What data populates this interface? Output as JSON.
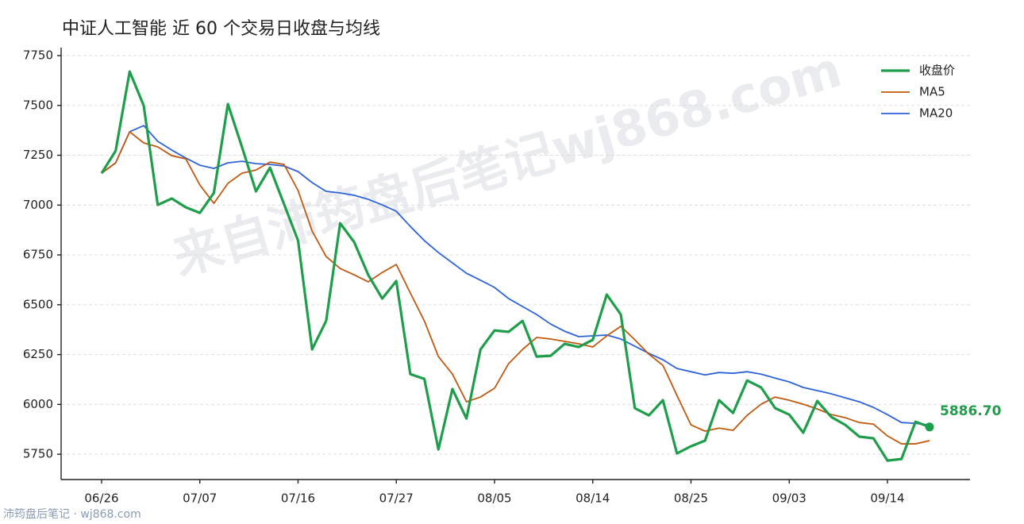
{
  "chart_data": {
    "type": "line",
    "title": "中证人工智能 近 60 个交易日收盘与均线",
    "watermark": "来自沛筠盘后笔记wj868.com",
    "footer": "沛筠盘后笔记 · wj868.com",
    "categories": [
      "06/26",
      null,
      null,
      null,
      null,
      null,
      null,
      "07/07",
      null,
      null,
      null,
      null,
      null,
      null,
      "07/16",
      null,
      null,
      null,
      null,
      null,
      null,
      "07/27",
      null,
      null,
      null,
      null,
      null,
      null,
      "08/05",
      null,
      null,
      null,
      null,
      null,
      null,
      "08/14",
      null,
      null,
      null,
      null,
      null,
      null,
      "08/25",
      null,
      null,
      null,
      null,
      null,
      null,
      "09/03",
      null,
      null,
      null,
      null,
      null,
      null,
      "09/14",
      null,
      null,
      null
    ],
    "series": [
      {
        "name": "收盘价",
        "color": "#1e9e4a",
        "values": [
          7160,
          7272,
          7670,
          7499,
          7001,
          7033,
          6989,
          6961,
          7061,
          7507,
          7292,
          7069,
          7188,
          7005,
          6822,
          6276,
          6419,
          6909,
          6814,
          6650,
          6531,
          6619,
          6152,
          6128,
          5774,
          6077,
          5929,
          6276,
          6371,
          6364,
          6419,
          6240,
          6244,
          6304,
          6288,
          6324,
          6551,
          6451,
          5981,
          5945,
          6021,
          5754,
          5790,
          5818,
          6021,
          5957,
          6120,
          6085,
          5981,
          5949,
          5858,
          6017,
          5937,
          5897,
          5838,
          5830,
          5718,
          5726,
          5913,
          5886.7
        ],
        "value_labels": [
          null,
          null,
          null,
          null,
          null,
          null,
          null,
          null,
          null,
          null,
          null,
          null,
          null,
          null,
          null,
          null,
          null,
          null,
          null,
          null,
          null,
          null,
          null,
          null,
          null,
          null,
          null,
          null,
          null,
          null,
          null,
          null,
          null,
          null,
          null,
          null,
          null,
          null,
          null,
          null,
          null,
          null,
          null,
          null,
          null,
          null,
          null,
          null,
          null,
          null,
          null,
          null,
          null,
          null,
          null,
          null,
          null,
          null,
          null,
          "5886.70"
        ]
      },
      {
        "name": "MA5",
        "color": "#bf5a12",
        "values": [
          7160,
          7212,
          7368,
          7312,
          7292,
          7248,
          7232,
          7101,
          7009,
          7109,
          7160,
          7176,
          7216,
          7204,
          7073,
          6870,
          6742,
          6682,
          6650,
          6615,
          6662,
          6702,
          6559,
          6419,
          6240,
          6152,
          6013,
          6037,
          6081,
          6204,
          6276,
          6336,
          6328,
          6316,
          6304,
          6288,
          6344,
          6392,
          6324,
          6252,
          6196,
          6045,
          5897,
          5866,
          5881,
          5870,
          5945,
          6001,
          6037,
          6021,
          6001,
          5977,
          5949,
          5933,
          5909,
          5901,
          5842,
          5802,
          5802,
          5818
        ]
      },
      {
        "name": "MA20",
        "color": "#2f63d8",
        "values": [
          7160,
          7212,
          7368,
          7399,
          7320,
          7276,
          7236,
          7200,
          7184,
          7212,
          7220,
          7208,
          7204,
          7196,
          7168,
          7113,
          7069,
          7061,
          7049,
          7029,
          7001,
          6969,
          6893,
          6822,
          6762,
          6710,
          6658,
          6623,
          6587,
          6531,
          6491,
          6451,
          6403,
          6367,
          6340,
          6344,
          6348,
          6328,
          6292,
          6256,
          6224,
          6180,
          6164,
          6148,
          6160,
          6156,
          6164,
          6152,
          6132,
          6113,
          6085,
          6069,
          6053,
          6033,
          6013,
          5985,
          5949,
          5909,
          5905,
          5897
        ]
      }
    ],
    "ylim": [
      5623,
      7790
    ],
    "yticks": [
      5750,
      6000,
      6250,
      6500,
      6750,
      7000,
      7250,
      7500,
      7750
    ],
    "grid": true,
    "legend": "upper-right"
  }
}
